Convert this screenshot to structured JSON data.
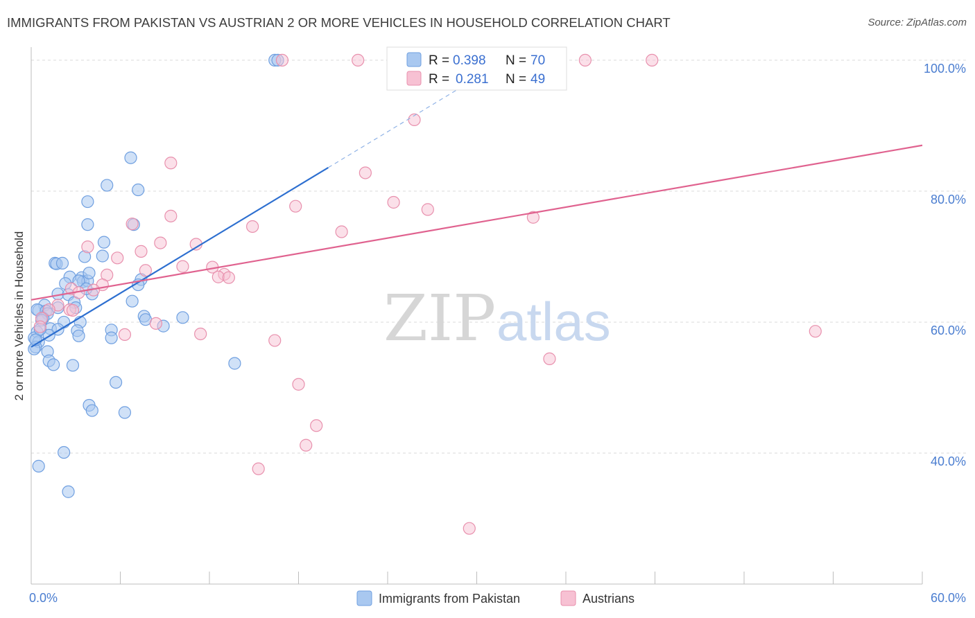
{
  "header": {
    "title": "IMMIGRANTS FROM PAKISTAN VS AUSTRIAN 2 OR MORE VEHICLES IN HOUSEHOLD CORRELATION CHART",
    "source": "Source: ZipAtlas.com"
  },
  "legend_top": {
    "rows": [
      {
        "r_label": "R =",
        "r_value": "0.398",
        "n_label": "N =",
        "n_value": "70"
      },
      {
        "r_label": "R =",
        "r_value": "0.281",
        "n_label": "N =",
        "n_value": "49"
      }
    ]
  },
  "legend_bottom": {
    "items": [
      "Immigrants from Pakistan",
      "Austrians"
    ]
  },
  "watermark": {
    "zip": "ZIP",
    "atlas": "atlas"
  },
  "colors": {
    "blue_fill": "#a9c8f0",
    "blue_stroke": "#6f9fe0",
    "blue_line": "#2d6fd0",
    "pink_fill": "#f7c1d3",
    "pink_stroke": "#e890ad",
    "pink_line": "#e0628f",
    "grid": "#d9d9d9",
    "axis_label": "#4a7dd0"
  },
  "chart_data": {
    "type": "scatter",
    "title": "IMMIGRANTS FROM PAKISTAN VS AUSTRIAN 2 OR MORE VEHICLES IN HOUSEHOLD CORRELATION CHART",
    "xlabel": "",
    "ylabel": "2 or more Vehicles in Household",
    "xlim": [
      0,
      60
    ],
    "ylim": [
      20,
      102
    ],
    "x_tick_labels": [
      "0.0%",
      "60.0%"
    ],
    "y_tick_labels": [
      "40.0%",
      "60.0%",
      "80.0%",
      "100.0%"
    ],
    "y_ticks": [
      40,
      60,
      80,
      100
    ],
    "grid": true,
    "series": [
      {
        "name": "Immigrants from Pakistan",
        "R": 0.398,
        "N": 70,
        "trend": {
          "x0": 0.0,
          "y0": 56.2,
          "x1": 20.0,
          "y1": 83.6,
          "dash_to_x": 31.0
        },
        "points": [
          [
            16.4,
            100
          ],
          [
            16.6,
            100
          ],
          [
            6.7,
            85.1
          ],
          [
            5.1,
            80.9
          ],
          [
            7.2,
            80.2
          ],
          [
            3.8,
            78.4
          ],
          [
            3.8,
            74.9
          ],
          [
            6.9,
            74.9
          ],
          [
            4.9,
            72.2
          ],
          [
            4.8,
            70.1
          ],
          [
            3.6,
            70.0
          ],
          [
            1.6,
            69.0
          ],
          [
            1.7,
            68.9
          ],
          [
            2.1,
            69.0
          ],
          [
            2.6,
            66.9
          ],
          [
            3.4,
            66.8
          ],
          [
            3.5,
            66.2
          ],
          [
            3.8,
            66.3
          ],
          [
            7.4,
            66.5
          ],
          [
            3.2,
            66.3
          ],
          [
            2.3,
            65.9
          ],
          [
            4.1,
            64.3
          ],
          [
            1.8,
            64.3
          ],
          [
            2.5,
            64.2
          ],
          [
            6.8,
            63.2
          ],
          [
            2.9,
            63.0
          ],
          [
            0.9,
            62.6
          ],
          [
            3.0,
            62.2
          ],
          [
            1.8,
            62.2
          ],
          [
            0.5,
            61.8
          ],
          [
            0.4,
            61.9
          ],
          [
            1.0,
            61.7
          ],
          [
            1.1,
            61.3
          ],
          [
            0.8,
            60.6
          ],
          [
            0.7,
            60.3
          ],
          [
            2.2,
            60.0
          ],
          [
            3.3,
            60.0
          ],
          [
            7.6,
            60.9
          ],
          [
            7.7,
            60.4
          ],
          [
            10.2,
            60.7
          ],
          [
            8.9,
            59.4
          ],
          [
            5.4,
            58.8
          ],
          [
            1.3,
            59.0
          ],
          [
            0.4,
            58.5
          ],
          [
            1.8,
            58.9
          ],
          [
            3.1,
            58.7
          ],
          [
            3.2,
            57.9
          ],
          [
            1.2,
            58.0
          ],
          [
            5.4,
            57.6
          ],
          [
            0.2,
            57.6
          ],
          [
            0.5,
            57.0
          ],
          [
            0.3,
            56.2
          ],
          [
            0.2,
            55.9
          ],
          [
            1.1,
            55.5
          ],
          [
            1.2,
            54.1
          ],
          [
            2.8,
            53.4
          ],
          [
            1.5,
            53.5
          ],
          [
            13.7,
            53.7
          ],
          [
            5.7,
            50.8
          ],
          [
            3.9,
            47.3
          ],
          [
            4.1,
            46.5
          ],
          [
            6.3,
            46.2
          ],
          [
            2.2,
            40.1
          ],
          [
            0.5,
            38.0
          ],
          [
            2.5,
            34.1
          ],
          [
            0.3,
            57.3
          ],
          [
            0.6,
            58.9
          ],
          [
            3.7,
            65.1
          ],
          [
            7.2,
            65.7
          ],
          [
            3.9,
            67.5
          ]
        ]
      },
      {
        "name": "Austrians",
        "R": 0.281,
        "N": 49,
        "trend": {
          "x0": 0.0,
          "y0": 63.4,
          "x1": 60.0,
          "y1": 87.0
        },
        "points": [
          [
            16.9,
            100
          ],
          [
            22.0,
            100
          ],
          [
            32.2,
            100
          ],
          [
            37.3,
            100
          ],
          [
            41.8,
            100
          ],
          [
            25.8,
            90.9
          ],
          [
            9.4,
            84.3
          ],
          [
            22.5,
            82.8
          ],
          [
            24.4,
            78.3
          ],
          [
            17.8,
            77.7
          ],
          [
            26.7,
            77.2
          ],
          [
            9.4,
            76.2
          ],
          [
            33.8,
            76.0
          ],
          [
            6.8,
            75.0
          ],
          [
            14.9,
            74.6
          ],
          [
            20.9,
            73.8
          ],
          [
            8.7,
            72.1
          ],
          [
            3.8,
            71.5
          ],
          [
            11.1,
            71.9
          ],
          [
            7.4,
            70.8
          ],
          [
            5.8,
            69.8
          ],
          [
            10.2,
            68.5
          ],
          [
            12.2,
            68.4
          ],
          [
            7.7,
            67.9
          ],
          [
            5.1,
            67.2
          ],
          [
            13.0,
            67.3
          ],
          [
            12.6,
            66.9
          ],
          [
            13.3,
            66.8
          ],
          [
            4.8,
            65.7
          ],
          [
            2.7,
            65.1
          ],
          [
            4.2,
            64.9
          ],
          [
            3.2,
            64.5
          ],
          [
            1.8,
            62.6
          ],
          [
            2.6,
            61.9
          ],
          [
            1.2,
            61.9
          ],
          [
            2.8,
            61.8
          ],
          [
            8.4,
            59.8
          ],
          [
            6.3,
            58.1
          ],
          [
            11.4,
            58.2
          ],
          [
            16.4,
            57.2
          ],
          [
            52.8,
            58.6
          ],
          [
            34.9,
            54.4
          ],
          [
            18.0,
            50.5
          ],
          [
            19.2,
            44.2
          ],
          [
            18.5,
            41.2
          ],
          [
            15.3,
            37.6
          ],
          [
            29.5,
            28.5
          ],
          [
            0.7,
            60.6
          ],
          [
            0.6,
            59.3
          ]
        ]
      }
    ]
  }
}
